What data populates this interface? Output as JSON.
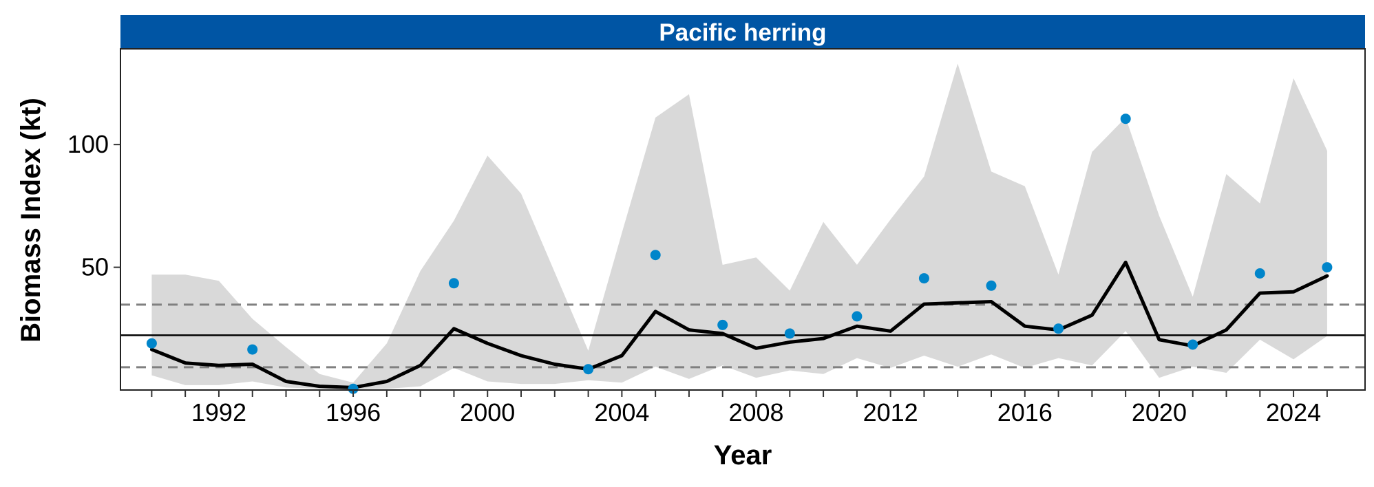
{
  "chart_data": {
    "type": "line",
    "title": "Pacific herring",
    "xlabel": "Year",
    "ylabel": "Biomass Index (kt)",
    "xlim": [
      1989.07,
      2026.13
    ],
    "ylim": [
      0,
      139
    ],
    "x_ticks": [
      1992,
      1996,
      2000,
      2004,
      2008,
      2012,
      2016,
      2020,
      2024
    ],
    "y_ticks": [
      50,
      100
    ],
    "grid": false,
    "reference_lines": {
      "mean": 22.3,
      "lower_dashed": 9.3,
      "upper_dashed": 34.8
    },
    "ribbon": {
      "x": [
        1990,
        1991,
        1992,
        1993,
        1994,
        1995,
        1996,
        1997,
        1998,
        1999,
        2000,
        2001,
        2002,
        2003,
        2004,
        2005,
        2006,
        2007,
        2008,
        2009,
        2010,
        2011,
        2012,
        2013,
        2014,
        2015,
        2016,
        2017,
        2018,
        2019,
        2020,
        2021,
        2022,
        2023,
        2024,
        2025
      ],
      "lower": [
        6.0,
        2.0,
        2.0,
        3.5,
        1.0,
        0.5,
        0.3,
        0.5,
        1.5,
        9.0,
        3.5,
        2.5,
        2.5,
        4.0,
        3.0,
        9.5,
        4.5,
        10.0,
        5.0,
        8.0,
        6.5,
        13.0,
        9.0,
        14.0,
        9.5,
        14.5,
        9.0,
        13.0,
        10.0,
        24.0,
        5.0,
        9.5,
        7.0,
        20.5,
        12.5,
        22.0
      ],
      "upper": [
        47.0,
        47.0,
        44.5,
        29.0,
        17.5,
        6.5,
        3.0,
        19.0,
        48.5,
        69.0,
        95.5,
        80.0,
        48.0,
        16.0,
        64.0,
        111.0,
        120.5,
        51.0,
        54.0,
        40.5,
        68.5,
        51.0,
        69.5,
        87.0,
        133.0,
        89.0,
        83.0,
        47.0,
        97.0,
        111.0,
        71.0,
        38.0,
        88.0,
        76.0,
        127.0,
        97.5
      ]
    },
    "series": [
      {
        "kind": "line",
        "x": [
          1990,
          1991,
          1992,
          1993,
          1994,
          1995,
          1996,
          1997,
          1998,
          1999,
          2000,
          2001,
          2002,
          2003,
          2004,
          2005,
          2006,
          2007,
          2008,
          2009,
          2010,
          2011,
          2012,
          2013,
          2014,
          2015,
          2016,
          2017,
          2018,
          2019,
          2020,
          2021,
          2022,
          2023,
          2024,
          2025
        ],
        "values": [
          16.5,
          11.0,
          10.0,
          10.5,
          3.5,
          1.5,
          1.0,
          3.5,
          10.0,
          25.0,
          19.0,
          14.0,
          10.5,
          8.5,
          14.0,
          32.0,
          24.5,
          23.0,
          17.0,
          19.5,
          21.0,
          26.0,
          24.0,
          35.0,
          35.5,
          36.0,
          26.0,
          24.5,
          30.5,
          52.0,
          20.5,
          18.0,
          24.5,
          39.5,
          40.0,
          46.5
        ]
      },
      {
        "kind": "points",
        "x": [
          1990,
          1993,
          1996,
          1999,
          2003,
          2005,
          2007,
          2009,
          2011,
          2013,
          2015,
          2017,
          2019,
          2021,
          2023,
          2025
        ],
        "values": [
          19.0,
          16.5,
          0.5,
          43.5,
          8.5,
          55.0,
          26.5,
          23.0,
          30.0,
          45.5,
          42.5,
          25.0,
          110.5,
          18.5,
          47.5,
          50.0
        ]
      }
    ],
    "colors": {
      "strip_fill": "#0055A4",
      "ribbon": "#D9D9D9",
      "line": "#000000",
      "points": "#0085CA",
      "dashed": "#808080"
    }
  }
}
